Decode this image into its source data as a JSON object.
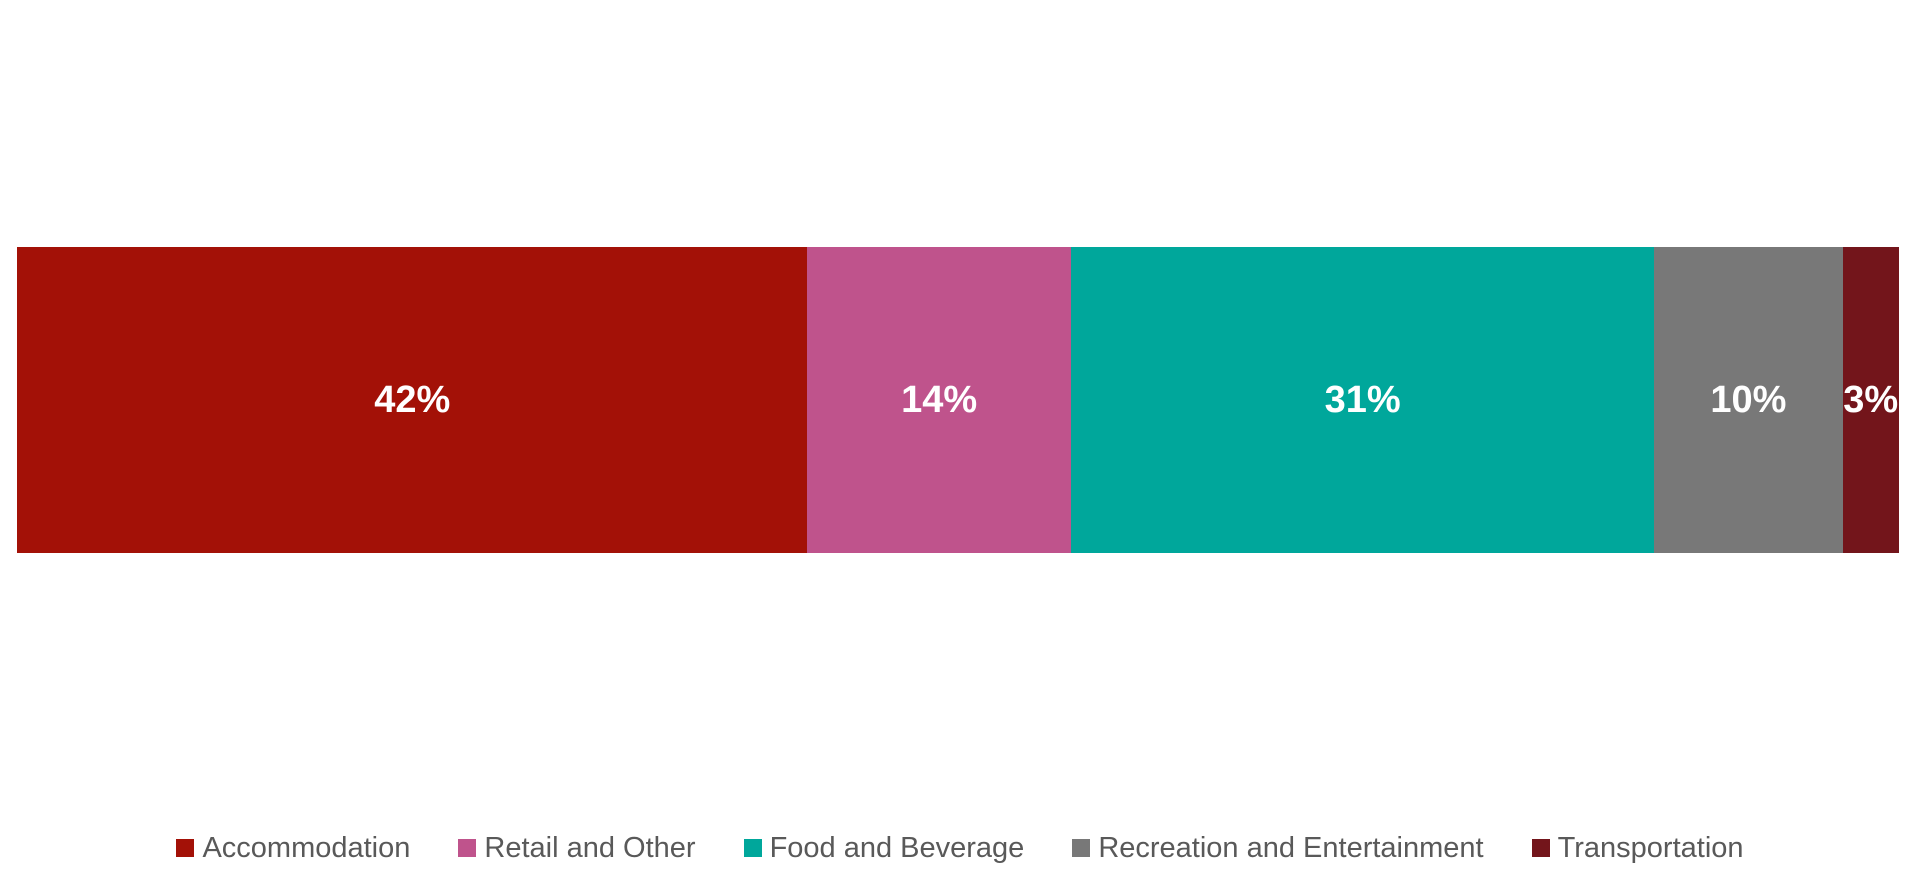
{
  "chart_data": {
    "type": "bar",
    "subtype": "horizontal-stacked-100pct",
    "title": "",
    "xlabel": "",
    "ylabel": "",
    "axes_visible": false,
    "grid": false,
    "legend_position": "bottom-center",
    "value_label_color": "#FFFFFF",
    "legend_text_color": "#595959",
    "background_color": "#FFFFFF",
    "series": [
      {
        "label": "Accommodation",
        "value": 42,
        "display": "42%",
        "color": "#A31107"
      },
      {
        "label": "Retail and Other",
        "value": 14,
        "display": "14%",
        "color": "#BF538C"
      },
      {
        "label": "Food and Beverage",
        "value": 31,
        "display": "31%",
        "color": "#00A79B"
      },
      {
        "label": "Recreation and Entertainment",
        "value": 10,
        "display": "10%",
        "color": "#787878"
      },
      {
        "label": "Transportation",
        "value": 3,
        "display": "3%",
        "color": "#73151B"
      }
    ]
  }
}
